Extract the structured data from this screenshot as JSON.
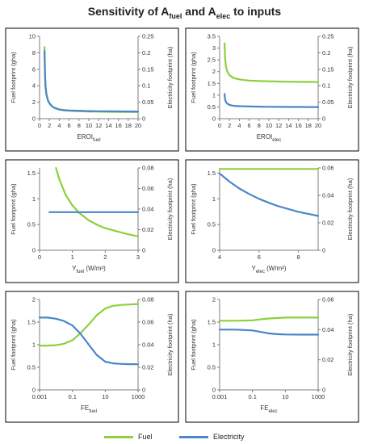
{
  "title": {
    "prefix": "Sensitivity of A",
    "sub1": "fuel",
    "mid": " and A",
    "sub2": "elec",
    "suffix": " to inputs"
  },
  "colors": {
    "fuel": "#8CD03C",
    "electricity": "#4A86C8",
    "axis": "#7f7f7f",
    "panel_border": "#000000"
  },
  "legend": [
    {
      "key": "fuel",
      "label": "Fuel"
    },
    {
      "key": "electricity",
      "label": "Electricity"
    }
  ],
  "chart_data": [
    {
      "type": "line",
      "xlabel": "EROI",
      "xlabel_sub": "fuel",
      "ylabel": "Fuel footprint (gha)",
      "y2label": "Electricity footprint (ha)",
      "xscale": "linear",
      "xlim": [
        0,
        20
      ],
      "xticks": [
        0,
        2,
        4,
        6,
        8,
        10,
        12,
        14,
        16,
        18,
        20
      ],
      "xtick_labels": [
        "0",
        "2",
        "4",
        "6",
        "8",
        "10",
        "12",
        "14",
        "16",
        "18",
        "20"
      ],
      "ylim": [
        0,
        10
      ],
      "yticks": [
        0,
        2,
        4,
        6,
        8,
        10
      ],
      "ytick_labels": [
        "0",
        "2",
        "4",
        "6",
        "8",
        "10"
      ],
      "y2lim": [
        0,
        0.25
      ],
      "y2ticks": [
        0,
        0.05,
        0.1,
        0.15,
        0.2,
        0.25
      ],
      "y2tick_labels": [
        "0",
        "0.05",
        "0.1",
        "0.15",
        "0.2",
        "0.25"
      ],
      "series": [
        {
          "key": "fuel",
          "axis": "y",
          "x": [
            1,
            1.1,
            1.2,
            1.4,
            1.7,
            2,
            2.5,
            3,
            4,
            5,
            6,
            8,
            10,
            12,
            14,
            16,
            18,
            20
          ],
          "values": [
            8.7,
            5.5,
            4.0,
            2.9,
            2.2,
            1.85,
            1.5,
            1.3,
            1.1,
            1.0,
            0.95,
            0.9,
            0.87,
            0.85,
            0.83,
            0.82,
            0.81,
            0.8
          ]
        },
        {
          "key": "electricity",
          "axis": "y2",
          "x": [
            1,
            1.1,
            1.2,
            1.4,
            1.7,
            2,
            2.5,
            3,
            4,
            5,
            6,
            8,
            10,
            12,
            14,
            16,
            18,
            20
          ],
          "values": [
            0.205,
            0.14,
            0.1,
            0.074,
            0.056,
            0.047,
            0.038,
            0.033,
            0.028,
            0.026,
            0.025,
            0.024,
            0.023,
            0.0225,
            0.0222,
            0.022,
            0.0218,
            0.0216
          ]
        }
      ]
    },
    {
      "type": "line",
      "xlabel": "EROI",
      "xlabel_sub": "elec",
      "ylabel": "Fuel footprint (gha)",
      "y2label": "Electricity footprint (ha)",
      "xscale": "linear",
      "xlim": [
        0,
        20
      ],
      "xticks": [
        0,
        2,
        4,
        6,
        8,
        10,
        12,
        14,
        16,
        18,
        20
      ],
      "xtick_labels": [
        "0",
        "2",
        "4",
        "6",
        "8",
        "10",
        "12",
        "14",
        "16",
        "18",
        "20"
      ],
      "ylim": [
        0,
        3.5
      ],
      "yticks": [
        0,
        0.5,
        1,
        1.5,
        2,
        2.5,
        3,
        3.5
      ],
      "ytick_labels": [
        "0",
        "0.5",
        "1",
        "1.5",
        "2",
        "2.5",
        "3",
        "3.5"
      ],
      "y2lim": [
        0,
        0.25
      ],
      "y2ticks": [
        0,
        0.05,
        0.1,
        0.15,
        0.2,
        0.25
      ],
      "y2tick_labels": [
        "0",
        "0.05",
        "0.1",
        "0.15",
        "0.2",
        "0.25"
      ],
      "series": [
        {
          "key": "fuel",
          "axis": "y",
          "x": [
            1,
            1.1,
            1.3,
            1.6,
            2,
            2.5,
            3,
            4,
            5,
            6,
            8,
            10,
            12,
            14,
            16,
            18,
            20
          ],
          "values": [
            3.2,
            2.6,
            2.2,
            1.98,
            1.85,
            1.77,
            1.72,
            1.67,
            1.64,
            1.62,
            1.6,
            1.59,
            1.58,
            1.57,
            1.565,
            1.56,
            1.555
          ]
        },
        {
          "key": "electricity",
          "axis": "y2",
          "x": [
            1,
            1.1,
            1.3,
            1.6,
            2,
            2.5,
            3,
            4,
            5,
            6,
            8,
            10,
            12,
            14,
            16,
            18,
            20
          ],
          "values": [
            0.075,
            0.06,
            0.05,
            0.045,
            0.042,
            0.04,
            0.039,
            0.038,
            0.0375,
            0.037,
            0.0365,
            0.036,
            0.0358,
            0.0356,
            0.0355,
            0.0354,
            0.0353
          ]
        }
      ]
    },
    {
      "type": "line",
      "xlabel": "Y",
      "xlabel_sub": "fuel",
      "xlabel_suffix": " (W/m²)",
      "ylabel": "Fuel footprint (gha)",
      "y2label": "Electricity footprint (ha)",
      "xscale": "linear",
      "xlim": [
        0,
        3
      ],
      "xticks": [
        0,
        1,
        2,
        3
      ],
      "xtick_labels": [
        "0",
        "1",
        "2",
        "3"
      ],
      "ylim": [
        0,
        1.6
      ],
      "yticks": [
        0,
        0.5,
        1,
        1.5
      ],
      "ytick_labels": [
        "0",
        "0.5",
        "1",
        "1.5"
      ],
      "y2lim": [
        0,
        0.08
      ],
      "y2ticks": [
        0,
        0.02,
        0.04,
        0.06,
        0.08
      ],
      "y2tick_labels": [
        "0",
        "0.02",
        "0.04",
        "0.06",
        "0.08"
      ],
      "series": [
        {
          "key": "fuel",
          "axis": "y",
          "x": [
            0.5,
            0.6,
            0.8,
            1.0,
            1.2,
            1.5,
            1.8,
            2.0,
            2.4,
            2.7,
            3.0
          ],
          "values": [
            1.6,
            1.38,
            1.07,
            0.87,
            0.73,
            0.58,
            0.48,
            0.43,
            0.36,
            0.31,
            0.27
          ]
        },
        {
          "key": "electricity",
          "axis": "y2",
          "x": [
            0.3,
            3.0
          ],
          "values": [
            0.037,
            0.037
          ]
        }
      ]
    },
    {
      "type": "line",
      "xlabel": "Y",
      "xlabel_sub": "elec",
      "xlabel_suffix": " (W/m²)",
      "ylabel": "Fuel footprint (gha)",
      "y2label": "Electricity footprint (ha)",
      "xscale": "linear",
      "xlim": [
        4,
        9
      ],
      "xticks": [
        4,
        6,
        8
      ],
      "xtick_labels": [
        "4",
        "6",
        "8"
      ],
      "ylim": [
        0,
        1.6
      ],
      "yticks": [
        0,
        0.5,
        1,
        1.5
      ],
      "ytick_labels": [
        "0",
        "0.5",
        "1",
        "1.5"
      ],
      "y2lim": [
        0,
        0.06
      ],
      "y2ticks": [
        0,
        0.02,
        0.04,
        0.06
      ],
      "y2tick_labels": [
        "0",
        "0.02",
        "0.04",
        "0.06"
      ],
      "series": [
        {
          "key": "fuel",
          "axis": "y",
          "x": [
            4,
            9
          ],
          "values": [
            1.58,
            1.58
          ]
        },
        {
          "key": "electricity",
          "axis": "y2",
          "x": [
            4,
            4.5,
            5,
            5.5,
            6,
            6.5,
            7,
            7.5,
            8,
            8.5,
            9
          ],
          "values": [
            0.056,
            0.05,
            0.045,
            0.041,
            0.0375,
            0.0346,
            0.032,
            0.03,
            0.028,
            0.0265,
            0.025
          ]
        }
      ]
    },
    {
      "type": "line",
      "xlabel": "FE",
      "xlabel_sub": "fuel",
      "ylabel": "Fuel footprint (gha)",
      "y2label": "Electricity footprint (ha)",
      "xscale": "log",
      "xlim": [
        0.001,
        1000
      ],
      "xticks": [
        0.001,
        0.1,
        10,
        1000
      ],
      "xtick_labels": [
        "0.001",
        "0.1",
        "10",
        "1000"
      ],
      "ylim": [
        0,
        2
      ],
      "yticks": [
        0,
        0.5,
        1,
        1.5,
        2
      ],
      "ytick_labels": [
        "0",
        "0.5",
        "1",
        "1.5",
        "2"
      ],
      "y2lim": [
        0,
        0.08
      ],
      "y2ticks": [
        0,
        0.02,
        0.04,
        0.06,
        0.08
      ],
      "y2tick_labels": [
        "0",
        "0.02",
        "0.04",
        "0.06",
        "0.08"
      ],
      "series": [
        {
          "key": "fuel",
          "axis": "y",
          "x": [
            0.001,
            0.003,
            0.01,
            0.03,
            0.1,
            0.3,
            1,
            3,
            10,
            30,
            100,
            300,
            1000
          ],
          "values": [
            0.98,
            0.98,
            0.99,
            1.02,
            1.1,
            1.25,
            1.45,
            1.65,
            1.8,
            1.86,
            1.88,
            1.89,
            1.9
          ]
        },
        {
          "key": "electricity",
          "axis": "y2",
          "x": [
            0.001,
            0.003,
            0.01,
            0.03,
            0.1,
            0.3,
            1,
            3,
            10,
            30,
            100,
            300,
            1000
          ],
          "values": [
            0.064,
            0.064,
            0.063,
            0.061,
            0.057,
            0.05,
            0.04,
            0.031,
            0.025,
            0.0235,
            0.023,
            0.0228,
            0.0227
          ]
        }
      ]
    },
    {
      "type": "line",
      "xlabel": "FE",
      "xlabel_sub": "elec",
      "ylabel": "Fuel footprint (gha)",
      "y2label": "Electricity footprint (ha)",
      "xscale": "log",
      "xlim": [
        0.001,
        1000
      ],
      "xticks": [
        0.001,
        0.1,
        10,
        1000
      ],
      "xtick_labels": [
        "0.001",
        "0.1",
        "10",
        "1000"
      ],
      "ylim": [
        0,
        2
      ],
      "yticks": [
        0,
        0.5,
        1,
        1.5,
        2
      ],
      "ytick_labels": [
        "0",
        "0.5",
        "1",
        "1.5",
        "2"
      ],
      "y2lim": [
        0,
        0.06
      ],
      "y2ticks": [
        0,
        0.02,
        0.04,
        0.06
      ],
      "y2tick_labels": [
        "0",
        "0.02",
        "0.04",
        "0.06"
      ],
      "series": [
        {
          "key": "fuel",
          "axis": "y",
          "x": [
            0.001,
            0.01,
            0.1,
            0.3,
            1,
            3,
            10,
            100,
            1000
          ],
          "values": [
            1.53,
            1.53,
            1.54,
            1.56,
            1.58,
            1.59,
            1.6,
            1.6,
            1.6
          ]
        },
        {
          "key": "electricity",
          "axis": "y2",
          "x": [
            0.001,
            0.01,
            0.1,
            0.3,
            1,
            3,
            10,
            100,
            1000
          ],
          "values": [
            0.04,
            0.04,
            0.0395,
            0.0385,
            0.0375,
            0.037,
            0.0368,
            0.0367,
            0.0367
          ]
        }
      ]
    }
  ]
}
